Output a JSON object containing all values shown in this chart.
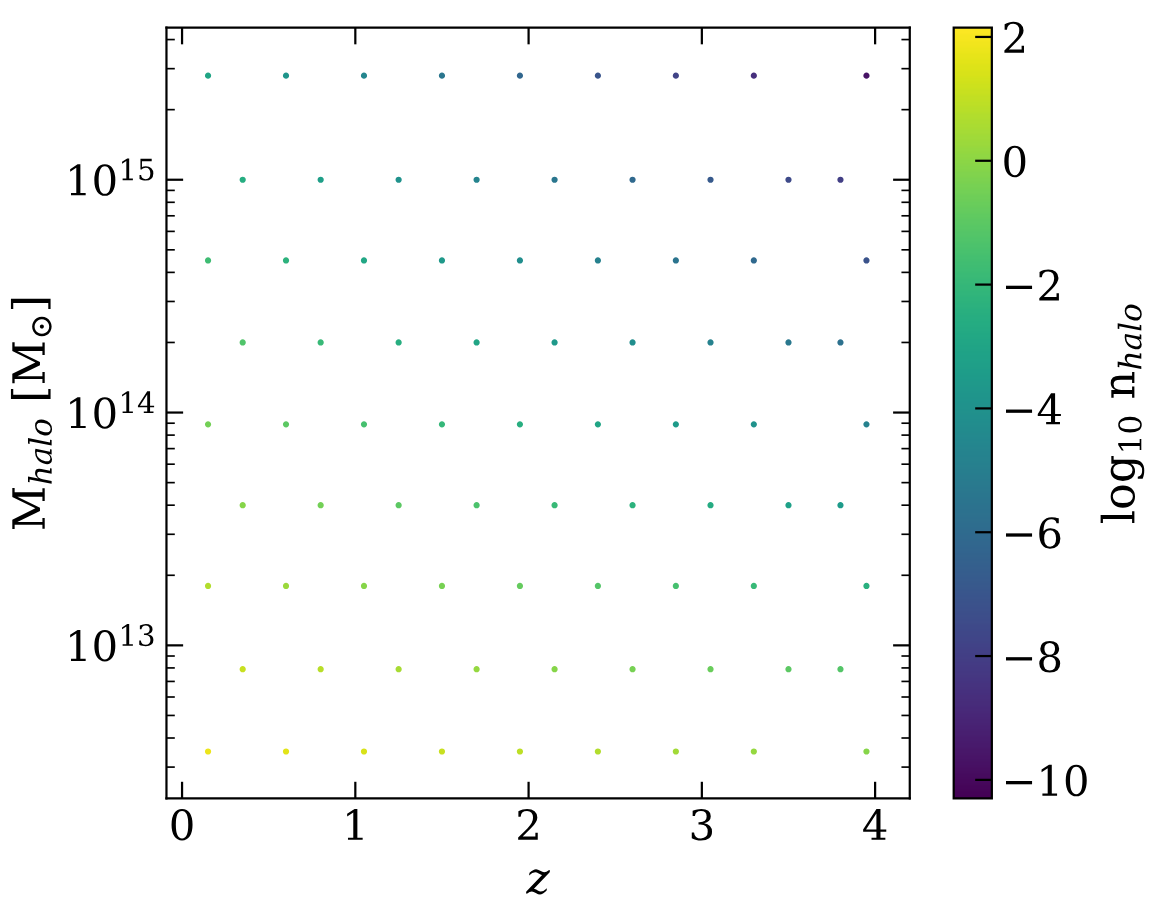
{
  "chart_data": {
    "type": "scatter",
    "xlabel": "z",
    "ylabel": "M$_{halo}$ [M$_{⊙}$]",
    "clabel": "log$_{10}$ n$_{halo}$",
    "x": [
      0.15,
      0.6,
      1.05,
      1.5,
      1.95,
      2.4,
      2.85,
      3.3,
      3.95,
      0.35,
      0.8,
      1.25,
      1.7,
      2.15,
      2.6,
      3.05,
      3.5,
      3.8,
      0.15,
      0.6,
      1.05,
      1.5,
      1.95,
      2.4,
      2.85,
      3.3,
      3.95,
      0.35,
      0.8,
      1.25,
      1.7,
      2.15,
      2.6,
      3.05,
      3.5,
      3.8,
      0.15,
      0.6,
      1.05,
      1.5,
      1.95,
      2.4,
      2.85,
      3.3,
      3.95,
      0.35,
      0.8,
      1.25,
      1.7,
      2.15,
      2.6,
      3.05,
      3.5,
      3.8,
      0.15,
      0.6,
      1.05,
      1.5,
      1.95,
      2.4,
      2.85,
      3.3,
      3.95,
      0.35,
      0.8,
      1.25,
      1.7,
      2.15,
      2.6,
      3.05,
      3.5,
      3.8,
      0.15,
      0.6,
      1.05,
      1.5,
      1.95,
      2.4,
      2.85,
      3.3,
      3.95
    ],
    "values": [
      3500000000000.0,
      3500000000000.0,
      3500000000000.0,
      3500000000000.0,
      3500000000000.0,
      3500000000000.0,
      3500000000000.0,
      3500000000000.0,
      3500000000000.0,
      7900000000000.0,
      7900000000000.0,
      7900000000000.0,
      7900000000000.0,
      7900000000000.0,
      7900000000000.0,
      7900000000000.0,
      7900000000000.0,
      7900000000000.0,
      18000000000000.0,
      18000000000000.0,
      18000000000000.0,
      18000000000000.0,
      18000000000000.0,
      18000000000000.0,
      18000000000000.0,
      18000000000000.0,
      18000000000000.0,
      40000000000000.0,
      40000000000000.0,
      40000000000000.0,
      40000000000000.0,
      40000000000000.0,
      40000000000000.0,
      40000000000000.0,
      40000000000000.0,
      40000000000000.0,
      89000000000000.0,
      89000000000000.0,
      89000000000000.0,
      89000000000000.0,
      89000000000000.0,
      89000000000000.0,
      89000000000000.0,
      89000000000000.0,
      89000000000000.0,
      200000000000000.0,
      200000000000000.0,
      200000000000000.0,
      200000000000000.0,
      200000000000000.0,
      200000000000000.0,
      200000000000000.0,
      200000000000000.0,
      200000000000000.0,
      450000000000000.0,
      450000000000000.0,
      450000000000000.0,
      450000000000000.0,
      450000000000000.0,
      450000000000000.0,
      450000000000000.0,
      450000000000000.0,
      450000000000000.0,
      1000000000000000.0,
      1000000000000000.0,
      1000000000000000.0,
      1000000000000000.0,
      1000000000000000.0,
      1000000000000000.0,
      1000000000000000.0,
      1000000000000000.0,
      1000000000000000.0,
      2800000000000000.0,
      2800000000000000.0,
      2800000000000000.0,
      2800000000000000.0,
      2800000000000000.0,
      2800000000000000.0,
      2800000000000000.0,
      2800000000000000.0,
      2800000000000000.0
    ],
    "cvalues": [
      1.8,
      1.6,
      1.4,
      1.1,
      0.9,
      0.7,
      0.4,
      0.2,
      -0.1,
      1.1,
      0.8,
      0.5,
      0.2,
      -0.1,
      -0.4,
      -0.7,
      -1.0,
      -1.2,
      0.7,
      0.3,
      -0.1,
      -0.4,
      -0.8,
      -1.2,
      -1.5,
      -1.9,
      -2.4,
      -0.1,
      -0.5,
      -1.0,
      -1.4,
      -1.9,
      -2.3,
      -2.7,
      -3.2,
      -3.5,
      -0.5,
      -1.0,
      -1.5,
      -2.0,
      -2.5,
      -3.0,
      -3.5,
      -4.0,
      -4.8,
      -1.3,
      -1.9,
      -2.5,
      -3.0,
      -3.6,
      -4.2,
      -4.8,
      -5.3,
      -5.7,
      -1.7,
      -2.3,
      -2.9,
      -3.6,
      -4.2,
      -4.9,
      -5.5,
      -6.1,
      -7.1,
      -2.6,
      -3.3,
      -4.0,
      -4.7,
      -5.4,
      -6.1,
      -6.8,
      -7.5,
      -8.0,
      -3.0,
      -3.8,
      -4.6,
      -5.4,
      -6.2,
      -7.0,
      -7.8,
      -8.6,
      -9.7
    ],
    "marker": "circle",
    "log": "y",
    "grid": false,
    "xlim": [
      -0.09,
      4.2
    ],
    "xticks": [
      0,
      1,
      2,
      3,
      4
    ],
    "ylim": [
      2200000000000.0,
      4500000000000000.0
    ],
    "yticks": [
      {
        "value": 10000000000000.0,
        "label": "10$^{13}$"
      },
      {
        "value": 100000000000000.0,
        "label": "10$^{14}$"
      },
      {
        "value": 1000000000000000.0,
        "label": "10$^{15}$"
      }
    ],
    "clim": [
      -10.3,
      2.15
    ],
    "cticks": [
      -10,
      -8,
      -6,
      -4,
      -2,
      0,
      2
    ]
  }
}
